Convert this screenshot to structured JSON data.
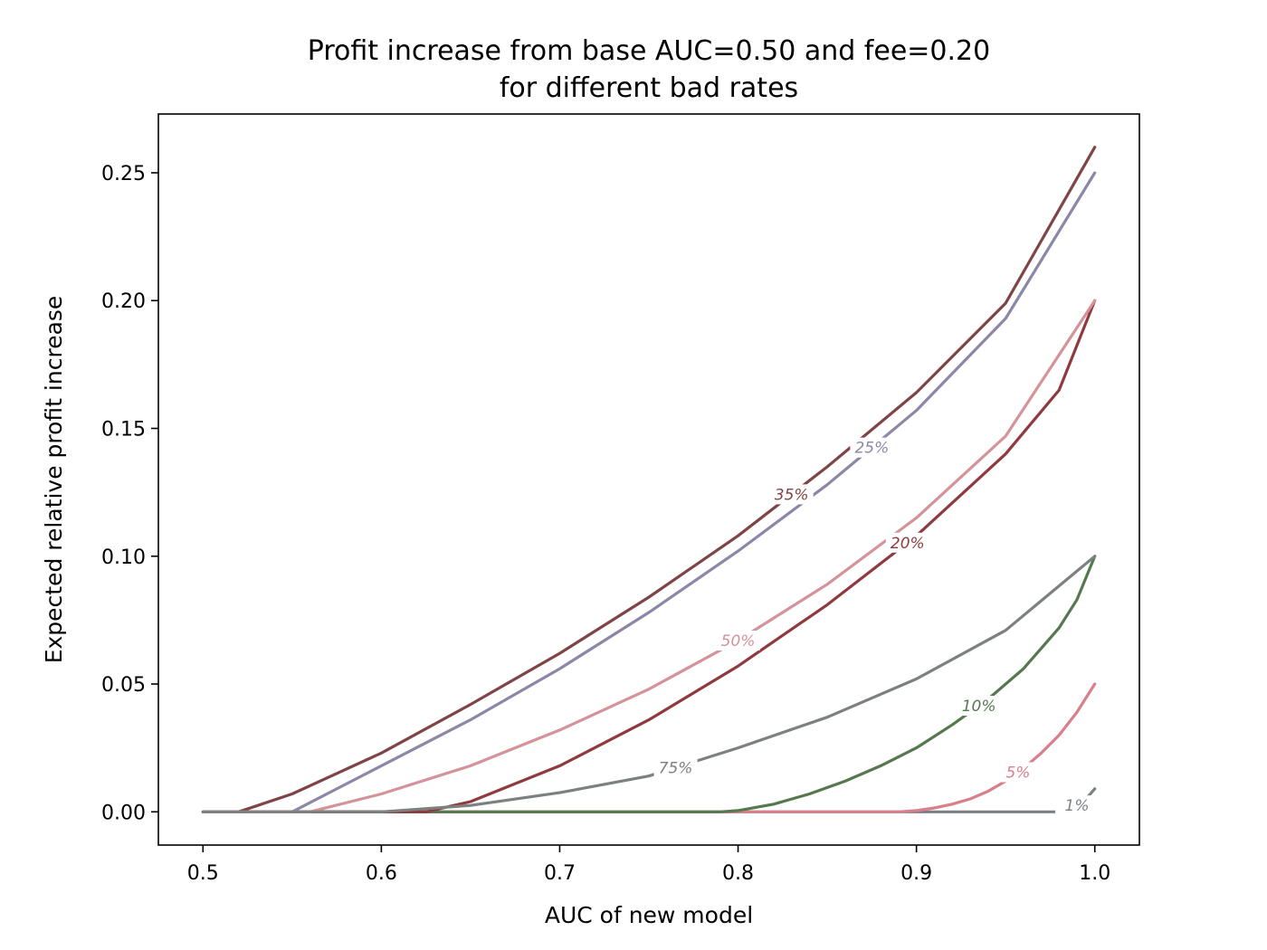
{
  "chart_data": {
    "type": "line",
    "title": "Profit increase from base AUC=0.50 and fee=0.20",
    "subtitle": "for different bad rates",
    "xlabel": "AUC of new model",
    "ylabel": "Expected relative profit increase",
    "xlim": [
      0.475,
      1.025
    ],
    "ylim": [
      -0.013,
      0.273
    ],
    "xticks": [
      0.5,
      0.6,
      0.7,
      0.8,
      0.9,
      1.0
    ],
    "xtick_labels": [
      "0.5",
      "0.6",
      "0.7",
      "0.8",
      "0.9",
      "1.0"
    ],
    "yticks": [
      0.0,
      0.05,
      0.1,
      0.15,
      0.2,
      0.25
    ],
    "ytick_labels": [
      "0.00",
      "0.05",
      "0.10",
      "0.15",
      "0.20",
      "0.25"
    ],
    "grid": false,
    "legend": "inline labels",
    "series": [
      {
        "name": "1%",
        "color": "#7b7f86",
        "label_x": 0.99,
        "x": [
          0.5,
          0.97,
          0.98,
          0.985,
          0.99,
          0.995,
          1.0
        ],
        "y": [
          0.0,
          0.0,
          0.0,
          0.0008,
          0.0025,
          0.005,
          0.009
        ]
      },
      {
        "name": "5%",
        "color": "#d97f8c",
        "label_x": 0.957,
        "x": [
          0.5,
          0.89,
          0.9,
          0.91,
          0.92,
          0.93,
          0.94,
          0.95,
          0.96,
          0.97,
          0.98,
          0.99,
          1.0
        ],
        "y": [
          0.0,
          0.0,
          0.0005,
          0.0015,
          0.003,
          0.005,
          0.008,
          0.012,
          0.017,
          0.023,
          0.03,
          0.039,
          0.05
        ]
      },
      {
        "name": "10%",
        "color": "#56784f",
        "label_x": 0.935,
        "x": [
          0.5,
          0.79,
          0.8,
          0.82,
          0.84,
          0.86,
          0.88,
          0.9,
          0.92,
          0.94,
          0.96,
          0.98,
          0.99,
          1.0
        ],
        "y": [
          0.0,
          0.0,
          0.0005,
          0.003,
          0.007,
          0.012,
          0.018,
          0.025,
          0.034,
          0.044,
          0.056,
          0.072,
          0.083,
          0.1
        ]
      },
      {
        "name": "20%",
        "color": "#8e3a3f",
        "label_x": 0.895,
        "x": [
          0.5,
          0.625,
          0.65,
          0.7,
          0.75,
          0.8,
          0.85,
          0.9,
          0.95,
          0.98,
          1.0
        ],
        "y": [
          0.0,
          0.0,
          0.004,
          0.018,
          0.036,
          0.057,
          0.081,
          0.108,
          0.14,
          0.165,
          0.2
        ]
      },
      {
        "name": "25%",
        "color": "#8b87a6",
        "label_x": 0.875,
        "x": [
          0.5,
          0.55,
          0.6,
          0.65,
          0.7,
          0.75,
          0.8,
          0.85,
          0.9,
          0.95,
          1.0
        ],
        "y": [
          0.0,
          0.0,
          0.018,
          0.036,
          0.056,
          0.078,
          0.102,
          0.128,
          0.157,
          0.193,
          0.25
        ]
      },
      {
        "name": "35%",
        "color": "#7f4546",
        "label_x": 0.83,
        "x": [
          0.5,
          0.52,
          0.55,
          0.6,
          0.65,
          0.7,
          0.75,
          0.8,
          0.85,
          0.9,
          0.95,
          1.0
        ],
        "y": [
          0.0,
          0.0,
          0.007,
          0.023,
          0.042,
          0.062,
          0.084,
          0.108,
          0.135,
          0.164,
          0.199,
          0.26
        ]
      },
      {
        "name": "50%",
        "color": "#d4939a",
        "label_x": 0.8,
        "x": [
          0.5,
          0.56,
          0.6,
          0.65,
          0.7,
          0.75,
          0.8,
          0.85,
          0.9,
          0.95,
          1.0
        ],
        "y": [
          0.0,
          0.0,
          0.007,
          0.018,
          0.032,
          0.048,
          0.067,
          0.089,
          0.115,
          0.147,
          0.2
        ]
      },
      {
        "name": "75%",
        "color": "#7d8080",
        "label_x": 0.765,
        "x": [
          0.5,
          0.6,
          0.65,
          0.7,
          0.75,
          0.8,
          0.85,
          0.9,
          0.95,
          1.0
        ],
        "y": [
          0.0,
          0.0,
          0.0025,
          0.0075,
          0.014,
          0.025,
          0.037,
          0.052,
          0.071,
          0.1
        ]
      }
    ]
  }
}
